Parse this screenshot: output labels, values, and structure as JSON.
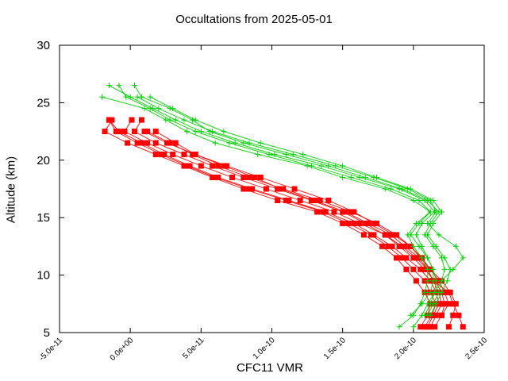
{
  "chart_data": {
    "type": "line",
    "title": "Occultations from 2025-05-01",
    "xlabel": "CFC11 VMR",
    "ylabel": "Altitude (km)",
    "xlim": [
      -5e-11,
      2.5e-10
    ],
    "ylim": [
      5,
      30
    ],
    "x_ticks": [
      "-5.0e-11",
      "0.0e+00",
      "5.0e-11",
      "1.0e-10",
      "1.5e-10",
      "2.0e-10",
      "2.5e-10"
    ],
    "y_ticks": [
      "5",
      "10",
      "15",
      "20",
      "25",
      "30"
    ],
    "grid": false,
    "legend": "none",
    "colors": {
      "red": "#ff0000",
      "green": "#00d000"
    },
    "series": [
      {
        "color": "#ff0000",
        "marker": "square",
        "points": [
          [
            2.1e-10,
            5.5
          ],
          [
            2.14e-10,
            6.5
          ],
          [
            2.18e-10,
            7.5
          ],
          [
            2.16e-10,
            8.5
          ],
          [
            2.12e-10,
            9.5
          ],
          [
            2.05e-10,
            10.5
          ],
          [
            1.95e-10,
            11.5
          ],
          [
            1.85e-10,
            12.5
          ],
          [
            1.72e-10,
            13.5
          ],
          [
            1.58e-10,
            14.5
          ],
          [
            1.38e-10,
            15.5
          ],
          [
            1.12e-10,
            16.5
          ],
          [
            8.6e-11,
            17.5
          ],
          [
            6.2e-11,
            18.5
          ],
          [
            4.2e-11,
            19.5
          ],
          [
            2.4e-11,
            20.5
          ],
          [
            8e-12,
            21.5
          ],
          [
            -8e-12,
            22.5
          ],
          [
            -1.5e-11,
            23.5
          ]
        ]
      },
      {
        "color": "#ff0000",
        "marker": "square",
        "points": [
          [
            2.15e-10,
            5.5
          ],
          [
            2.2e-10,
            6.5
          ],
          [
            2.22e-10,
            7.5
          ],
          [
            2.2e-10,
            8.5
          ],
          [
            2.15e-10,
            9.5
          ],
          [
            2.08e-10,
            10.5
          ],
          [
            2e-10,
            11.5
          ],
          [
            1.9e-10,
            12.5
          ],
          [
            1.8e-10,
            13.5
          ],
          [
            1.62e-10,
            14.5
          ],
          [
            1.44e-10,
            15.5
          ],
          [
            1.2e-10,
            16.5
          ],
          [
            9.6e-11,
            17.5
          ],
          [
            7.2e-11,
            18.5
          ],
          [
            5e-11,
            19.5
          ],
          [
            3e-11,
            20.5
          ],
          [
            1.2e-11,
            21.5
          ],
          [
            -4e-12,
            22.5
          ],
          [
            1e-12,
            23.5
          ]
        ]
      },
      {
        "color": "#ff0000",
        "marker": "square",
        "points": [
          [
            2.05e-10,
            5.5
          ],
          [
            2.1e-10,
            6.5
          ],
          [
            2.12e-10,
            7.5
          ],
          [
            2.08e-10,
            8.5
          ],
          [
            2.02e-10,
            9.5
          ],
          [
            1.95e-10,
            10.5
          ],
          [
            1.88e-10,
            11.5
          ],
          [
            1.78e-10,
            12.5
          ],
          [
            1.65e-10,
            13.5
          ],
          [
            1.5e-10,
            14.5
          ],
          [
            1.32e-10,
            15.5
          ],
          [
            1.04e-10,
            16.5
          ],
          [
            8e-11,
            17.5
          ],
          [
            5.8e-11,
            18.5
          ],
          [
            3.8e-11,
            19.5
          ],
          [
            1.8e-11,
            20.5
          ],
          [
            -2e-12,
            21.5
          ],
          [
            -1.8e-11,
            22.5
          ],
          [
            -1.3e-11,
            23.5
          ]
        ]
      },
      {
        "color": "#ff0000",
        "marker": "square",
        "points": [
          [
            2.12e-10,
            5.5
          ],
          [
            2.16e-10,
            6.5
          ],
          [
            2.2e-10,
            7.5
          ],
          [
            2.18e-10,
            8.5
          ],
          [
            2.14e-10,
            9.5
          ],
          [
            2.1e-10,
            10.5
          ],
          [
            2.02e-10,
            11.5
          ],
          [
            1.92e-10,
            12.5
          ],
          [
            1.8e-10,
            13.5
          ],
          [
            1.66e-10,
            14.5
          ],
          [
            1.5e-10,
            15.5
          ],
          [
            1.28e-10,
            16.5
          ],
          [
            1.04e-10,
            17.5
          ],
          [
            8e-11,
            18.5
          ],
          [
            5.8e-11,
            19.5
          ],
          [
            3.8e-11,
            20.5
          ],
          [
            1.8e-11,
            21.5
          ],
          [
            3e-12,
            22.5
          ],
          [
            8e-12,
            23.5
          ]
        ]
      },
      {
        "color": "#ff0000",
        "marker": "square",
        "points": [
          [
            2.08e-10,
            5.5
          ],
          [
            2.13e-10,
            6.5
          ],
          [
            2.16e-10,
            7.5
          ],
          [
            2.12e-10,
            8.5
          ],
          [
            2.08e-10,
            9.5
          ],
          [
            2e-10,
            10.5
          ],
          [
            1.92e-10,
            11.5
          ],
          [
            1.82e-10,
            12.5
          ],
          [
            1.7e-10,
            13.5
          ],
          [
            1.54e-10,
            14.5
          ],
          [
            1.36e-10,
            15.5
          ],
          [
            1.1e-10,
            16.5
          ],
          [
            8.4e-11,
            17.5
          ],
          [
            6e-11,
            18.5
          ],
          [
            4e-11,
            19.5
          ],
          [
            2.2e-11,
            20.5
          ],
          [
            5e-12,
            21.5
          ],
          [
            -1e-11,
            22.5
          ],
          [
            -1.5e-11,
            23.5
          ]
        ]
      },
      {
        "color": "#ff0000",
        "marker": "square",
        "points": [
          [
            2.2e-10,
            6.5
          ],
          [
            2.25e-10,
            7.5
          ],
          [
            2.22e-10,
            8.5
          ],
          [
            2.18e-10,
            9.5
          ],
          [
            2.12e-10,
            10.5
          ],
          [
            2.05e-10,
            11.5
          ],
          [
            1.98e-10,
            12.5
          ],
          [
            1.86e-10,
            13.5
          ],
          [
            1.72e-10,
            14.5
          ],
          [
            1.58e-10,
            15.5
          ],
          [
            1.4e-10,
            16.5
          ],
          [
            1.16e-10,
            17.5
          ],
          [
            9.2e-11,
            18.5
          ],
          [
            6.8e-11,
            19.5
          ],
          [
            4.6e-11,
            20.5
          ],
          [
            2.6e-11,
            21.5
          ],
          [
            1e-11,
            22.5
          ]
        ]
      },
      {
        "color": "#ff0000",
        "marker": "square",
        "points": [
          [
            2.25e-10,
            5.5
          ],
          [
            2.28e-10,
            6.5
          ],
          [
            2.3e-10,
            7.5
          ],
          [
            2.26e-10,
            8.5
          ],
          [
            2.2e-10,
            9.5
          ],
          [
            2.12e-10,
            10.5
          ],
          [
            2.06e-10,
            11.5
          ],
          [
            1.98e-10,
            12.5
          ],
          [
            1.88e-10,
            13.5
          ],
          [
            1.74e-10,
            14.5
          ],
          [
            1.56e-10,
            15.5
          ],
          [
            1.34e-10,
            16.5
          ],
          [
            1.08e-10,
            17.5
          ],
          [
            8.4e-11,
            18.5
          ],
          [
            6.2e-11,
            19.5
          ],
          [
            4.4e-11,
            20.5
          ],
          [
            2.8e-11,
            21.5
          ],
          [
            1.2e-11,
            22.5
          ]
        ]
      },
      {
        "color": "#ff0000",
        "marker": "square",
        "points": [
          [
            2.35e-10,
            5.5
          ],
          [
            2.32e-10,
            6.5
          ],
          [
            2.28e-10,
            7.5
          ],
          [
            2.25e-10,
            8.5
          ],
          [
            2.14e-10,
            9.5
          ],
          [
            2.1e-10,
            10.5
          ],
          [
            2.04e-10,
            11.5
          ],
          [
            1.94e-10,
            12.5
          ],
          [
            1.84e-10,
            13.5
          ],
          [
            1.68e-10,
            14.5
          ],
          [
            1.52e-10,
            15.5
          ],
          [
            1.3e-10,
            16.5
          ],
          [
            1.06e-10,
            17.5
          ],
          [
            8.8e-11,
            18.5
          ],
          [
            6.6e-11,
            19.5
          ],
          [
            4.6e-11,
            20.5
          ],
          [
            3.2e-11,
            21.5
          ],
          [
            1.8e-11,
            22.5
          ]
        ]
      },
      {
        "color": "#00d000",
        "marker": "plus",
        "points": [
          [
            1.9e-10,
            5.5
          ],
          [
            2e-10,
            6.5
          ],
          [
            2.05e-10,
            7.5
          ],
          [
            2.08e-10,
            8.5
          ],
          [
            2.1e-10,
            9.5
          ],
          [
            2.1e-10,
            10.5
          ],
          [
            2.06e-10,
            11.5
          ],
          [
            2e-10,
            12.5
          ],
          [
            1.96e-10,
            13.5
          ],
          [
            2.02e-10,
            14.5
          ],
          [
            2.12e-10,
            15.5
          ],
          [
            2e-10,
            16.5
          ],
          [
            1.8e-10,
            17.5
          ],
          [
            1.5e-10,
            18.5
          ],
          [
            1.25e-10,
            19.5
          ],
          [
            9e-11,
            20.5
          ],
          [
            6e-11,
            21.5
          ],
          [
            4e-11,
            22.5
          ],
          [
            2.5e-11,
            23.5
          ],
          [
            1e-11,
            24.5
          ],
          [
            -2e-11,
            25.5
          ]
        ]
      },
      {
        "color": "#00d000",
        "marker": "plus",
        "points": [
          [
            1.98e-10,
            6.5
          ],
          [
            2.06e-10,
            7.5
          ],
          [
            2.12e-10,
            8.5
          ],
          [
            2.14e-10,
            9.5
          ],
          [
            2.14e-10,
            10.5
          ],
          [
            2.1e-10,
            11.5
          ],
          [
            2.06e-10,
            12.5
          ],
          [
            2.02e-10,
            13.5
          ],
          [
            2.06e-10,
            14.5
          ],
          [
            2.15e-10,
            15.5
          ],
          [
            2.08e-10,
            16.5
          ],
          [
            1.9e-10,
            17.5
          ],
          [
            1.62e-10,
            18.5
          ],
          [
            1.35e-10,
            19.5
          ],
          [
            1.02e-10,
            20.5
          ],
          [
            7.4e-11,
            21.5
          ],
          [
            5e-11,
            22.5
          ],
          [
            3.2e-11,
            23.5
          ],
          [
            1.6e-11,
            24.5
          ],
          [
            0.0,
            25.5
          ],
          [
            -1.5e-11,
            26.5
          ]
        ]
      },
      {
        "color": "#00d000",
        "marker": "plus",
        "points": [
          [
            2e-10,
            5.5
          ],
          [
            2.06e-10,
            6.5
          ],
          [
            2.1e-10,
            7.5
          ],
          [
            2.15e-10,
            8.5
          ],
          [
            2.2e-10,
            9.5
          ],
          [
            2.28e-10,
            10.5
          ],
          [
            2.35e-10,
            11.5
          ],
          [
            2.3e-10,
            12.5
          ],
          [
            2.18e-10,
            13.5
          ],
          [
            2.1e-10,
            14.5
          ],
          [
            2.16e-10,
            15.5
          ],
          [
            2.12e-10,
            16.5
          ],
          [
            1.96e-10,
            17.5
          ],
          [
            1.72e-10,
            18.5
          ],
          [
            1.45e-10,
            19.5
          ],
          [
            1.15e-10,
            20.5
          ],
          [
            8.4e-11,
            21.5
          ],
          [
            5.8e-11,
            22.5
          ],
          [
            3.8e-11,
            23.5
          ],
          [
            2e-11,
            24.5
          ],
          [
            5e-12,
            25.5
          ]
        ]
      },
      {
        "color": "#00d000",
        "marker": "plus",
        "points": [
          [
            2.08e-10,
            6.5
          ],
          [
            2.12e-10,
            7.5
          ],
          [
            2.15e-10,
            8.5
          ],
          [
            2.16e-10,
            9.5
          ],
          [
            2.14e-10,
            10.5
          ],
          [
            2.1e-10,
            11.5
          ],
          [
            2.04e-10,
            12.5
          ],
          [
            1.98e-10,
            13.5
          ],
          [
            2.04e-10,
            14.5
          ],
          [
            2.12e-10,
            15.5
          ],
          [
            2.04e-10,
            16.5
          ],
          [
            1.84e-10,
            17.5
          ],
          [
            1.56e-10,
            18.5
          ],
          [
            1.28e-10,
            19.5
          ],
          [
            9.8e-11,
            20.5
          ],
          [
            7e-11,
            21.5
          ],
          [
            4.6e-11,
            22.5
          ],
          [
            2.8e-11,
            23.5
          ],
          [
            1.4e-11,
            24.5
          ],
          [
            -3e-12,
            25.5
          ],
          [
            -8e-12,
            26.5
          ]
        ]
      },
      {
        "color": "#00d000",
        "marker": "plus",
        "points": [
          [
            2.1e-10,
            6.5
          ],
          [
            2.14e-10,
            7.5
          ],
          [
            2.18e-10,
            8.5
          ],
          [
            2.2e-10,
            9.5
          ],
          [
            2.22e-10,
            10.5
          ],
          [
            2.2e-10,
            11.5
          ],
          [
            2.14e-10,
            12.5
          ],
          [
            2.08e-10,
            13.5
          ],
          [
            2.12e-10,
            14.5
          ],
          [
            2.18e-10,
            15.5
          ],
          [
            2.1e-10,
            16.5
          ],
          [
            1.92e-10,
            17.5
          ],
          [
            1.66e-10,
            18.5
          ],
          [
            1.4e-10,
            19.5
          ],
          [
            1.1e-10,
            20.5
          ],
          [
            8e-11,
            21.5
          ],
          [
            5.6e-11,
            22.5
          ],
          [
            4.4e-11,
            23.5
          ],
          [
            2.8e-11,
            24.5
          ],
          [
            8e-12,
            25.5
          ],
          [
            3e-12,
            26.5
          ]
        ]
      },
      {
        "color": "#00d000",
        "marker": "plus",
        "points": [
          [
            2.12e-10,
            6.5
          ],
          [
            2.16e-10,
            7.5
          ],
          [
            2.2e-10,
            8.5
          ],
          [
            2.24e-10,
            9.5
          ],
          [
            2.26e-10,
            10.5
          ],
          [
            2.22e-10,
            11.5
          ],
          [
            2.16e-10,
            12.5
          ],
          [
            2.1e-10,
            13.5
          ],
          [
            2.14e-10,
            14.5
          ],
          [
            2.2e-10,
            15.5
          ],
          [
            2.14e-10,
            16.5
          ],
          [
            1.98e-10,
            17.5
          ],
          [
            1.74e-10,
            18.5
          ],
          [
            1.5e-10,
            19.5
          ],
          [
            1.22e-10,
            20.5
          ],
          [
            9.2e-11,
            21.5
          ],
          [
            6.6e-11,
            22.5
          ],
          [
            4.6e-11,
            23.5
          ],
          [
            3e-11,
            24.5
          ],
          [
            1.4e-11,
            25.5
          ]
        ]
      }
    ]
  }
}
